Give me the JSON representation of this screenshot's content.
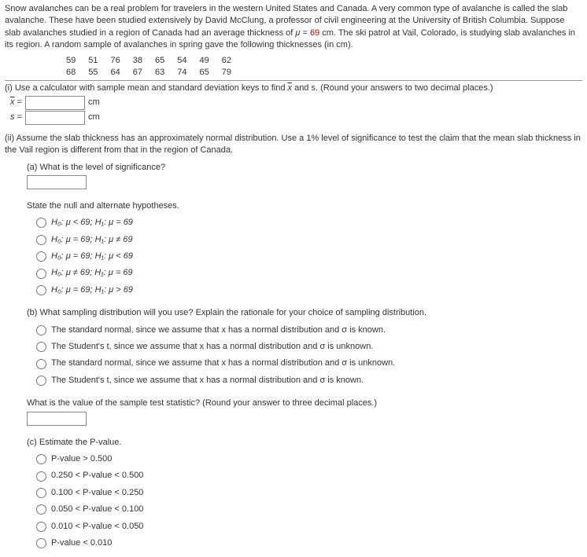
{
  "intro": {
    "t1": "Snow avalanches can be a real problem for travelers in the western United States and Canada. A very common type of avalanche is called the slab avalanche. These have been studied extensively by David McClung, a professor of civil engineering at the University of British Columbia. Suppose slab avalanches studied in a region of Canada had an average thickness of ",
    "mu": "μ",
    "t2": " = ",
    "val": "69",
    "t3": " cm. The ski patrol at Vail, Colorado, is studying slab avalanches in its region. A random sample of avalanches in spring gave the following thicknesses (in cm)."
  },
  "data_row1": [
    "59",
    "51",
    "76",
    "38",
    "65",
    "54",
    "49",
    "62"
  ],
  "data_row2": [
    "68",
    "55",
    "64",
    "67",
    "63",
    "74",
    "65",
    "79"
  ],
  "part_i": {
    "text_a": "(i) Use a calculator with sample mean and standard deviation keys to find ",
    "xbar": "x",
    "text_b": " and s. (Round your answers to two decimal places.)",
    "x_unit": "cm",
    "s_unit": "cm"
  },
  "inputs": {
    "x": "",
    "s": "",
    "sig": "",
    "tstat": ""
  },
  "part_ii": {
    "text": "(ii) Assume the slab thickness has an approximately normal distribution. Use a 1% level of significance to test the claim that the mean slab thickness in the Vail region is different from that in the region of Canada.",
    "a_q": "(a) What is the level of significance?",
    "hyp_title": "State the null and alternate hypotheses.",
    "hyp": [
      "H₀: μ < 69; H₁: μ = 69",
      "H₀: μ = 69; H₁: μ ≠ 69",
      "H₀: μ = 69; H₁: μ < 69",
      "H₀: μ ≠ 69; H₁: μ = 69",
      "H₀: μ = 69; H₁: μ > 69"
    ],
    "b_q": "(b) What sampling distribution will you use? Explain the rationale for your choice of sampling distribution.",
    "b_opts": [
      "The standard normal, since we assume that x has a normal distribution and σ is known.",
      "The Student's t, since we assume that x has a normal distribution and σ is unknown.",
      "The standard normal, since we assume that x has a normal distribution and σ is unknown.",
      "The Student's t, since we assume that x has a normal distribution and σ is known."
    ],
    "tstat_q": "What is the value of the sample test statistic? (Round your answer to three decimal places.)",
    "c_q": "(c) Estimate the P-value.",
    "c_opts": [
      "P-value > 0.500",
      "0.250 < P-value < 0.500",
      "0.100 < P-value < 0.250",
      "0.050 < P-value < 0.100",
      "0.010 < P-value < 0.050",
      "P-value < 0.010"
    ]
  }
}
